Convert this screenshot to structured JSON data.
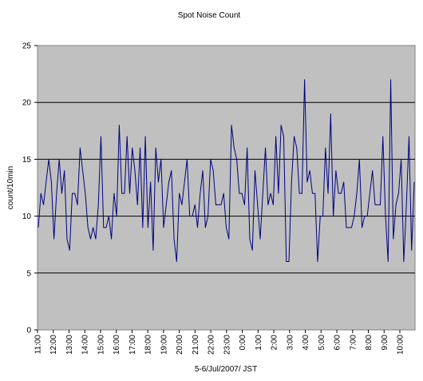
{
  "chart_data": {
    "type": "line",
    "title": "Spot Noise Count",
    "xlabel": "5-6/Jul/2007/ JST",
    "ylabel": "count/10min",
    "ylim": [
      0,
      25
    ],
    "y_ticks": [
      0,
      5,
      10,
      15,
      20,
      25
    ],
    "x_ticks": [
      "11:00",
      "12:00",
      "13:00",
      "14:00",
      "15:00",
      "16:00",
      "17:00",
      "18:00",
      "19:00",
      "20:00",
      "21:00",
      "22:00",
      "23:00",
      "0:00",
      "1:00",
      "2:00",
      "3:00",
      "4:00",
      "5:00",
      "6:00",
      "7:00",
      "8:00",
      "9:00",
      "10:00"
    ],
    "grid": true,
    "plot_background": "#c0c0c0",
    "line_color": "#000080",
    "series": [
      {
        "values": [
          9,
          12,
          11,
          13,
          15,
          13,
          8,
          12,
          15,
          12,
          14,
          8,
          7,
          12,
          12,
          11,
          16,
          14,
          12,
          9,
          8,
          9,
          8,
          11,
          17,
          9,
          9,
          10,
          8,
          12,
          10,
          18,
          12,
          12,
          17,
          12,
          16,
          14,
          11,
          16,
          9,
          17,
          9,
          13,
          7,
          16,
          13,
          15,
          9,
          11,
          13,
          14,
          8,
          6,
          12,
          11,
          13,
          15,
          10,
          10,
          11,
          9,
          12,
          14,
          9,
          10,
          15,
          14,
          11,
          11,
          11,
          12,
          9,
          8,
          18,
          16,
          15,
          12,
          12,
          11,
          16,
          8,
          7,
          14,
          11,
          8,
          12,
          16,
          11,
          12,
          11,
          17,
          12,
          18,
          17,
          6,
          6,
          13,
          17,
          16,
          12,
          12,
          22,
          13,
          14,
          12,
          12,
          6,
          10,
          10,
          16,
          12,
          19,
          10,
          14,
          12,
          12,
          13,
          9,
          9,
          9,
          10,
          12,
          15,
          9,
          10,
          10,
          12,
          14,
          11,
          11,
          11,
          17,
          10,
          6,
          22,
          8,
          11,
          12,
          15,
          6,
          11,
          17,
          7,
          13
        ]
      }
    ]
  }
}
